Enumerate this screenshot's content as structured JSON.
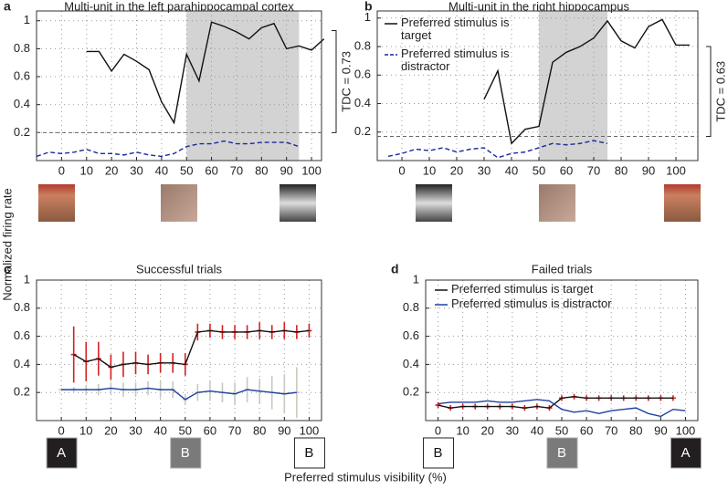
{
  "ylabel": "Normalized firing rate",
  "xlabel": "Preferred stimulus visibility (%)",
  "chart_data": [
    {
      "type": "line",
      "panel": "a",
      "title": "Multi-unit in the left parahippocampal cortex",
      "xlim": [
        -10,
        104
      ],
      "ylim": [
        0,
        1.07
      ],
      "xticks": [
        0,
        10,
        20,
        30,
        40,
        50,
        60,
        70,
        80,
        90,
        100
      ],
      "yticks": [
        0.2,
        0.4,
        0.6,
        0.8,
        1
      ],
      "grid": true,
      "shaded": [
        50,
        95
      ],
      "threshold": 0.2,
      "tdc_label": "TDC = 0.73",
      "tdc_range": [
        0.2,
        0.93
      ],
      "series": [
        {
          "color": "#111111",
          "dash": false,
          "x": [
            10,
            15,
            20,
            25,
            30,
            35,
            40,
            45,
            50,
            55,
            60,
            65,
            70,
            75,
            80,
            85,
            90,
            95,
            100,
            105
          ],
          "values": [
            0.78,
            0.78,
            0.64,
            0.76,
            0.71,
            0.65,
            0.42,
            0.27,
            0.76,
            0.57,
            0.99,
            0.96,
            0.92,
            0.87,
            0.95,
            0.98,
            0.8,
            0.82,
            0.79,
            0.87
          ]
        },
        {
          "color": "#1a2a9a",
          "dash": true,
          "x": [
            -10,
            -5,
            0,
            5,
            10,
            15,
            20,
            25,
            30,
            35,
            40,
            45,
            50,
            55,
            60,
            65,
            70,
            75,
            80,
            85,
            90,
            95
          ],
          "values": [
            0.03,
            0.06,
            0.05,
            0.06,
            0.08,
            0.05,
            0.05,
            0.04,
            0.06,
            0.04,
            0.03,
            0.05,
            0.1,
            0.12,
            0.12,
            0.14,
            0.12,
            0.12,
            0.13,
            0.13,
            0.13,
            0.1
          ]
        }
      ]
    },
    {
      "type": "line",
      "panel": "b",
      "title": "Multi-unit in the right hippocampus",
      "xlim": [
        -9,
        108
      ],
      "ylim": [
        0,
        1.05
      ],
      "xticks": [
        0,
        10,
        20,
        30,
        40,
        50,
        60,
        70,
        80,
        90,
        100
      ],
      "yticks": [
        0.2,
        0.4,
        0.6,
        0.8,
        1
      ],
      "grid": true,
      "shaded": [
        50,
        75
      ],
      "threshold": 0.17,
      "tdc_label": "TDC = 0.63",
      "tdc_range": [
        0.17,
        0.8
      ],
      "series": [
        {
          "name": "Preferred stimulus is target",
          "color": "#111111",
          "dash": false,
          "x": [
            30,
            35,
            40,
            45,
            50,
            55,
            60,
            65,
            70,
            75,
            80,
            85,
            90,
            95,
            100,
            105
          ],
          "values": [
            0.43,
            0.63,
            0.12,
            0.22,
            0.24,
            0.69,
            0.76,
            0.8,
            0.86,
            0.98,
            0.84,
            0.79,
            0.94,
            0.99,
            0.81,
            0.81
          ]
        },
        {
          "name": "Preferred stimulus is distractor",
          "color": "#1a2a9a",
          "dash": true,
          "x": [
            -5,
            0,
            5,
            10,
            15,
            20,
            25,
            30,
            35,
            40,
            45,
            50,
            55,
            60,
            65,
            70,
            75
          ],
          "values": [
            0.03,
            0.05,
            0.08,
            0.07,
            0.09,
            0.06,
            0.08,
            0.09,
            0.02,
            0.05,
            0.06,
            0.09,
            0.12,
            0.11,
            0.12,
            0.14,
            0.12
          ]
        }
      ]
    },
    {
      "type": "errorline",
      "panel": "c",
      "title": "Successful trials",
      "xlim": [
        -10,
        105
      ],
      "ylim": [
        0,
        1
      ],
      "xticks": [
        0,
        10,
        20,
        30,
        40,
        50,
        60,
        70,
        80,
        90,
        100
      ],
      "yticks": [
        0.2,
        0.4,
        0.6,
        0.8,
        1
      ],
      "grid": true,
      "stimulus_boxes": [
        {
          "label": "A",
          "x": 0,
          "color": "#231f20"
        },
        {
          "label": "B",
          "x": 50,
          "color": "#7a7a7a"
        },
        {
          "label": "B",
          "x": 100,
          "color": "#ffffff"
        }
      ],
      "series": [
        {
          "color": "#111111",
          "error_color": "#d62020",
          "x": [
            5,
            10,
            15,
            20,
            25,
            30,
            35,
            40,
            45,
            50,
            55,
            60,
            65,
            70,
            75,
            80,
            85,
            90,
            95,
            100
          ],
          "values": [
            0.47,
            0.42,
            0.44,
            0.38,
            0.4,
            0.41,
            0.4,
            0.41,
            0.41,
            0.4,
            0.63,
            0.64,
            0.63,
            0.63,
            0.63,
            0.64,
            0.63,
            0.64,
            0.63,
            0.64
          ],
          "errors": [
            0.2,
            0.14,
            0.12,
            0.09,
            0.09,
            0.08,
            0.07,
            0.07,
            0.07,
            0.08,
            0.06,
            0.05,
            0.05,
            0.05,
            0.05,
            0.06,
            0.05,
            0.06,
            0.05,
            0.05
          ]
        },
        {
          "color": "#2040a0",
          "error_color": "#c8c8c0",
          "x": [
            0,
            5,
            10,
            15,
            20,
            25,
            30,
            35,
            40,
            45,
            50,
            55,
            60,
            65,
            70,
            75,
            80,
            85,
            90,
            95
          ],
          "values": [
            0.22,
            0.22,
            0.22,
            0.22,
            0.23,
            0.22,
            0.22,
            0.23,
            0.22,
            0.22,
            0.15,
            0.2,
            0.21,
            0.2,
            0.19,
            0.22,
            0.21,
            0.2,
            0.19,
            0.2
          ],
          "errors": [
            0.01,
            0.02,
            0.03,
            0.04,
            0.04,
            0.05,
            0.05,
            0.05,
            0.06,
            0.06,
            0.04,
            0.06,
            0.07,
            0.07,
            0.08,
            0.09,
            0.09,
            0.12,
            0.14,
            0.18
          ]
        }
      ]
    },
    {
      "type": "errorline",
      "panel": "d",
      "title": "Failed trials",
      "xlim": [
        -5,
        105
      ],
      "ylim": [
        0,
        1
      ],
      "xticks": [
        0,
        10,
        20,
        30,
        40,
        50,
        60,
        70,
        80,
        90,
        100
      ],
      "yticks": [
        0.2,
        0.4,
        0.6,
        0.8,
        1
      ],
      "grid": true,
      "stimulus_boxes": [
        {
          "label": "B",
          "x": 0,
          "color": "#ffffff"
        },
        {
          "label": "B",
          "x": 50,
          "color": "#7a7a7a"
        },
        {
          "label": "A",
          "x": 100,
          "color": "#231f20"
        }
      ],
      "series": [
        {
          "name": "Preferred stimulus is target",
          "color": "#111111",
          "error_color": "#d62020",
          "x": [
            0,
            5,
            10,
            15,
            20,
            25,
            30,
            35,
            40,
            45,
            50,
            55,
            60,
            65,
            70,
            75,
            80,
            85,
            90,
            95
          ],
          "values": [
            0.11,
            0.09,
            0.1,
            0.1,
            0.1,
            0.1,
            0.1,
            0.09,
            0.1,
            0.09,
            0.16,
            0.17,
            0.16,
            0.16,
            0.16,
            0.16,
            0.16,
            0.16,
            0.16,
            0.16
          ],
          "errors": [
            0.02,
            0.02,
            0.02,
            0.02,
            0.02,
            0.02,
            0.02,
            0.02,
            0.02,
            0.02,
            0.02,
            0.02,
            0.02,
            0.02,
            0.02,
            0.02,
            0.02,
            0.02,
            0.02,
            0.02
          ]
        },
        {
          "name": "Preferred stimulus is distractor",
          "color": "#2040a0",
          "x": [
            0,
            5,
            10,
            15,
            20,
            25,
            30,
            35,
            40,
            45,
            50,
            55,
            60,
            65,
            70,
            75,
            80,
            85,
            90,
            95,
            100
          ],
          "values": [
            0.12,
            0.13,
            0.13,
            0.13,
            0.14,
            0.13,
            0.13,
            0.14,
            0.15,
            0.14,
            0.08,
            0.06,
            0.07,
            0.05,
            0.07,
            0.08,
            0.09,
            0.05,
            0.03,
            0.08,
            0.07
          ]
        }
      ]
    }
  ]
}
